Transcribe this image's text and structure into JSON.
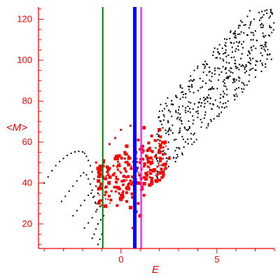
{
  "chart_data": {
    "type": "scatter",
    "title": "",
    "xlabel": "E",
    "ylabel": "<M>",
    "xlim": [
      -4.3,
      8.0
    ],
    "ylim": [
      8,
      126
    ],
    "x_ticks": [
      0,
      5
    ],
    "y_ticks": [
      20,
      40,
      60,
      80,
      100,
      120
    ],
    "grid": false,
    "legend": "none",
    "colors": {
      "axes": "#ff0000",
      "black_points": "#000000",
      "red_points": "#ff0000",
      "line_green": "#008000",
      "line_blue": "#0000ff",
      "line_magenta": "#ff00ff"
    },
    "vertical_lines": [
      {
        "x": -0.95,
        "color": "#008000"
      },
      {
        "x": 0.72,
        "color": "#0000ff"
      },
      {
        "x": 1.05,
        "color": "#ff00ff"
      }
    ],
    "series": [
      {
        "color": "#000000",
        "marker": "dot",
        "points": [
          [
            -4.0,
            40
          ],
          [
            -3.8,
            43
          ],
          [
            -3.6,
            46
          ],
          [
            -3.4,
            48.5
          ],
          [
            -3.2,
            50.5
          ],
          [
            -3.0,
            52
          ],
          [
            -2.8,
            53.5
          ],
          [
            -2.6,
            54.5
          ],
          [
            -2.4,
            55.2
          ],
          [
            -2.2,
            55.5
          ],
          [
            -2.0,
            55.2
          ],
          [
            -1.9,
            54.5
          ],
          [
            -1.8,
            53
          ],
          [
            -1.7,
            51
          ],
          [
            -1.6,
            48.5
          ],
          [
            -1.5,
            45.5
          ],
          [
            -1.4,
            42
          ],
          [
            -1.3,
            38.5
          ],
          [
            -1.2,
            35
          ],
          [
            -1.1,
            31.5
          ],
          [
            -3.1,
            31
          ],
          [
            -2.9,
            33.5
          ],
          [
            -2.7,
            36
          ],
          [
            -2.5,
            38.5
          ],
          [
            -2.3,
            41
          ],
          [
            -2.1,
            43.5
          ],
          [
            -1.95,
            45
          ],
          [
            -1.8,
            44
          ],
          [
            -1.7,
            42
          ],
          [
            -1.6,
            39.5
          ],
          [
            -1.5,
            36.5
          ],
          [
            -1.4,
            33.5
          ],
          [
            -1.3,
            30
          ],
          [
            -2.5,
            24
          ],
          [
            -2.3,
            26.5
          ],
          [
            -2.1,
            29
          ],
          [
            -1.9,
            31.5
          ],
          [
            -1.7,
            34
          ],
          [
            -1.55,
            35
          ],
          [
            -1.45,
            33
          ],
          [
            -1.35,
            30.5
          ],
          [
            -1.25,
            27
          ],
          [
            -1.9,
            18
          ],
          [
            -1.7,
            20.5
          ],
          [
            -1.5,
            23
          ],
          [
            -1.3,
            26
          ],
          [
            -1.1,
            28.5
          ],
          [
            -1.5,
            13
          ],
          [
            -1.4,
            15
          ],
          [
            -1.3,
            17.5
          ],
          [
            -1.2,
            20
          ],
          [
            -1.05,
            22
          ],
          [
            -0.9,
            24
          ],
          [
            -1.2,
            10
          ],
          [
            -1.1,
            12.5
          ],
          [
            -1.0,
            15
          ]
        ]
      },
      {
        "color": "#ff0000",
        "marker": "square",
        "points": [
          [
            -0.3,
            62
          ],
          [
            0.0,
            66
          ],
          [
            0.5,
            68
          ],
          [
            1.2,
            67
          ],
          [
            1.6,
            63
          ],
          [
            2.0,
            66
          ],
          [
            -0.6,
            59
          ],
          [
            0.3,
            58
          ],
          [
            0.9,
            61
          ],
          [
            1.5,
            57
          ],
          [
            -1.0,
            46
          ],
          [
            -0.8,
            42
          ],
          [
            -0.6,
            40
          ],
          [
            -0.4,
            44
          ],
          [
            -0.2,
            48
          ],
          [
            0.0,
            45
          ],
          [
            0.2,
            47
          ],
          [
            0.4,
            49
          ],
          [
            0.6,
            43
          ],
          [
            0.8,
            46
          ],
          [
            1.0,
            50
          ],
          [
            1.2,
            48
          ],
          [
            1.4,
            52
          ],
          [
            1.6,
            50
          ],
          [
            1.8,
            53
          ],
          [
            2.0,
            55
          ],
          [
            2.2,
            54
          ],
          [
            -0.5,
            36
          ],
          [
            -0.3,
            38
          ],
          [
            -0.1,
            35
          ],
          [
            0.1,
            39
          ],
          [
            0.3,
            37
          ],
          [
            0.5,
            41
          ],
          [
            0.7,
            36
          ],
          [
            0.9,
            40
          ],
          [
            1.1,
            38
          ],
          [
            1.3,
            42
          ],
          [
            1.5,
            39
          ],
          [
            0.0,
            32
          ],
          [
            0.3,
            31
          ],
          [
            0.6,
            33
          ],
          [
            0.9,
            30
          ],
          [
            1.2,
            34
          ],
          [
            -0.2,
            29
          ],
          [
            0.5,
            28
          ],
          [
            0.8,
            26
          ],
          [
            1.0,
            24
          ],
          [
            0.7,
            21
          ],
          [
            0.6,
            18
          ],
          [
            -1.3,
            50
          ],
          [
            -1.1,
            48
          ],
          [
            -0.9,
            51
          ],
          [
            0.2,
            55
          ],
          [
            0.4,
            52
          ],
          [
            1.7,
            46
          ],
          [
            1.9,
            44
          ],
          [
            2.3,
            49
          ],
          [
            2.5,
            52
          ],
          [
            1.6,
            40
          ]
        ]
      }
    ]
  }
}
